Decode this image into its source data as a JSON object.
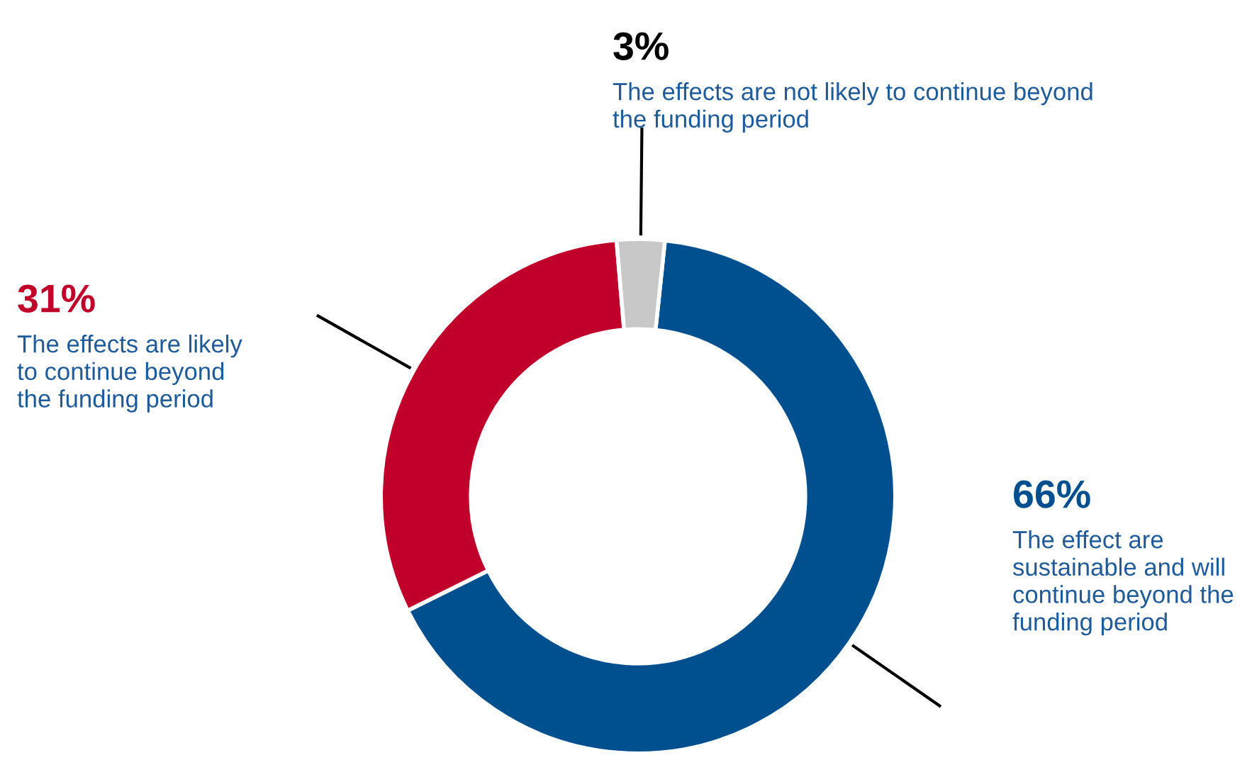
{
  "chart_data": {
    "type": "donut",
    "categories": [
      "The effect are\nsustainable and will\ncontinue beyond the\nfunding period",
      "The effects are likely\nto continue beyond\nthe funding period",
      "The effects are not likely to continue beyond\nthe funding period"
    ],
    "values": [
      66,
      31,
      3
    ],
    "value_labels": [
      "66%",
      "31%",
      "3%"
    ],
    "colors": [
      "#00508f",
      "#c0002a",
      "#c8c8c8"
    ],
    "legend": false
  }
}
